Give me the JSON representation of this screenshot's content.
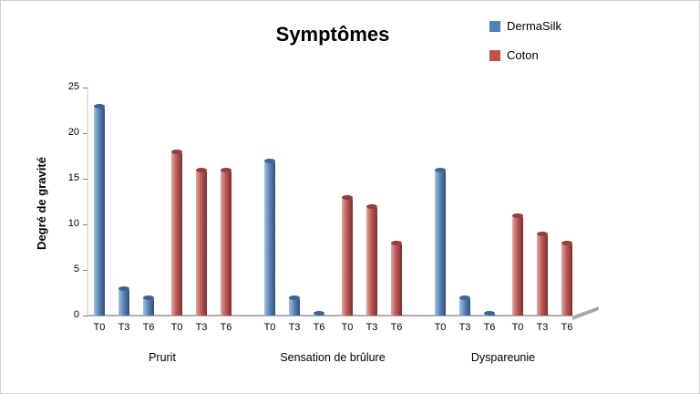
{
  "chart_data": {
    "type": "bar",
    "title": "Symptômes",
    "xlabel": "",
    "ylabel": "Degré de gravité",
    "ylim": [
      0,
      25
    ],
    "yticks": [
      0,
      5,
      10,
      15,
      20,
      25
    ],
    "grid": false,
    "legend_position": "top-right",
    "groups": [
      "Prurit",
      "Sensation de brûlure",
      "Dyspareunie"
    ],
    "subcategories": [
      "T0",
      "T3",
      "T6"
    ],
    "series": [
      {
        "name": "DermaSilk",
        "color": "#4F81BD",
        "values": [
          [
            23,
            3,
            2
          ],
          [
            17,
            2,
            0.3
          ],
          [
            16,
            2,
            0.3
          ]
        ]
      },
      {
        "name": "Coton",
        "color": "#C0504D",
        "values": [
          [
            18,
            16,
            16
          ],
          [
            13,
            12,
            8
          ],
          [
            11,
            9,
            8
          ]
        ]
      }
    ]
  }
}
